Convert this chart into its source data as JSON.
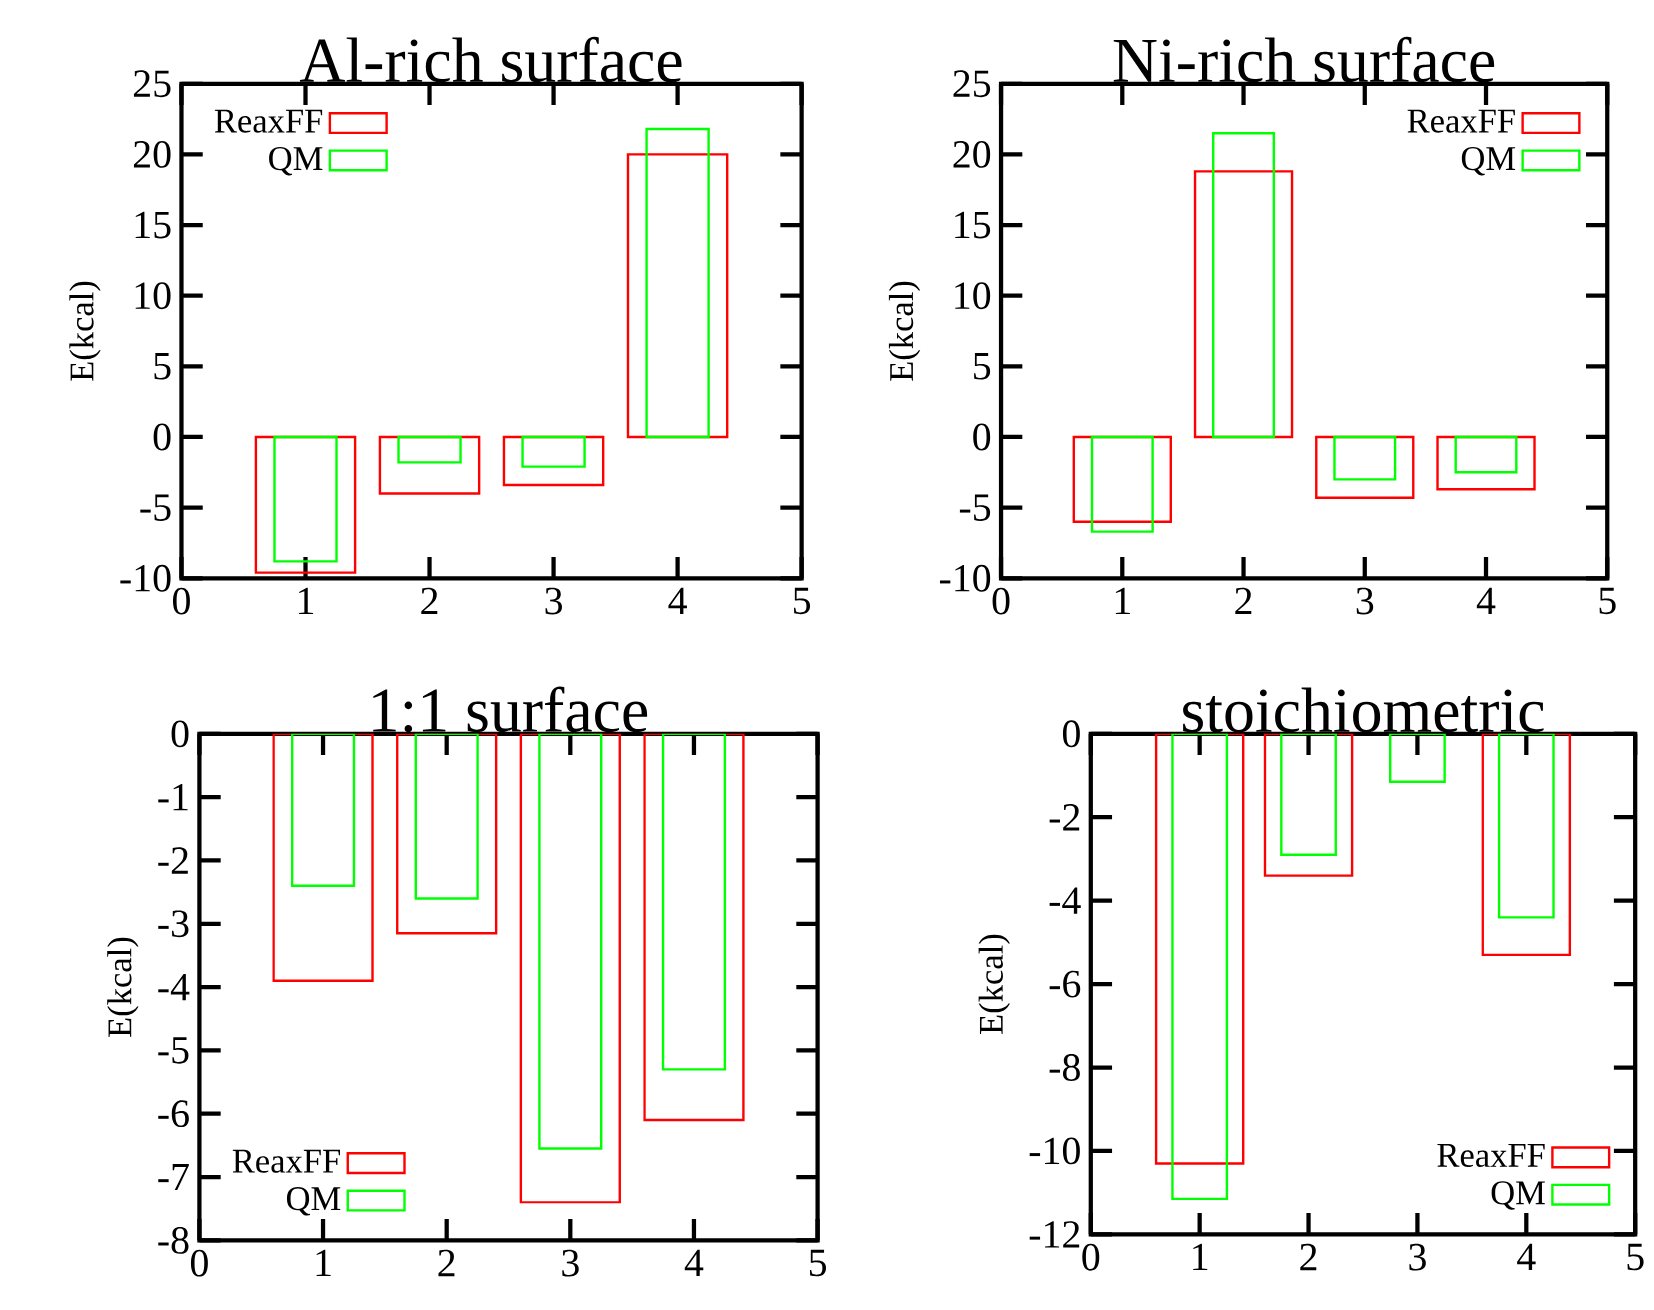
{
  "chart_data": [
    {
      "type": "bar",
      "title": "Al-rich surface",
      "ylabel": "E(kcal)",
      "x": [
        1,
        2,
        3,
        4
      ],
      "xlim": [
        0,
        5
      ],
      "xticks": [
        0,
        1,
        2,
        3,
        4,
        5
      ],
      "ylim": [
        -10,
        25
      ],
      "yticks": [
        -10,
        -5,
        0,
        5,
        10,
        15,
        20,
        25
      ],
      "legend": "top left",
      "series": [
        {
          "name": "ReaxFF",
          "color": "#ff0000",
          "values": [
            -9.6,
            -4.0,
            -3.4,
            20.0
          ]
        },
        {
          "name": "QM",
          "color": "#00ff00",
          "values": [
            -8.8,
            -1.8,
            -2.1,
            21.8
          ]
        }
      ]
    },
    {
      "type": "bar",
      "title": "Ni-rich surface",
      "ylabel": "E(kcal)",
      "x": [
        1,
        2,
        3,
        4
      ],
      "xlim": [
        0,
        5
      ],
      "xticks": [
        0,
        1,
        2,
        3,
        4,
        5
      ],
      "ylim": [
        -10,
        25
      ],
      "yticks": [
        -10,
        -5,
        0,
        5,
        10,
        15,
        20,
        25
      ],
      "legend": "top right",
      "series": [
        {
          "name": "ReaxFF",
          "color": "#ff0000",
          "values": [
            -6.0,
            18.8,
            -4.3,
            -3.7
          ]
        },
        {
          "name": "QM",
          "color": "#00ff00",
          "values": [
            -6.7,
            21.5,
            -3.0,
            -2.5
          ]
        }
      ]
    },
    {
      "type": "bar",
      "title": "1:1 surface",
      "ylabel": "E(kcal)",
      "x": [
        1,
        2,
        3,
        4
      ],
      "xlim": [
        0,
        5
      ],
      "xticks": [
        0,
        1,
        2,
        3,
        4,
        5
      ],
      "ylim": [
        -8,
        0
      ],
      "yticks": [
        -8,
        -7,
        -6,
        -5,
        -4,
        -3,
        -2,
        -1,
        0
      ],
      "legend": "bottom left",
      "series": [
        {
          "name": "ReaxFF",
          "color": "#ff0000",
          "values": [
            -3.9,
            -3.15,
            -7.4,
            -6.1
          ]
        },
        {
          "name": "QM",
          "color": "#00ff00",
          "values": [
            -2.4,
            -2.6,
            -6.55,
            -5.3
          ]
        }
      ]
    },
    {
      "type": "bar",
      "title": "stoichiometric",
      "ylabel": "E(kcal)",
      "x": [
        1,
        2,
        3,
        4
      ],
      "xlim": [
        0,
        5
      ],
      "xticks": [
        0,
        1,
        2,
        3,
        4,
        5
      ],
      "ylim": [
        -12,
        0
      ],
      "yticks": [
        -12,
        -10,
        -8,
        -6,
        -4,
        -2,
        0
      ],
      "legend": "bottom right",
      "series": [
        {
          "name": "ReaxFF",
          "color": "#ff0000",
          "values": [
            -10.3,
            -3.4,
            null,
            -5.3
          ]
        },
        {
          "name": "QM",
          "color": "#00ff00",
          "values": [
            -11.15,
            -2.9,
            -1.15,
            -4.4
          ]
        }
      ]
    }
  ]
}
